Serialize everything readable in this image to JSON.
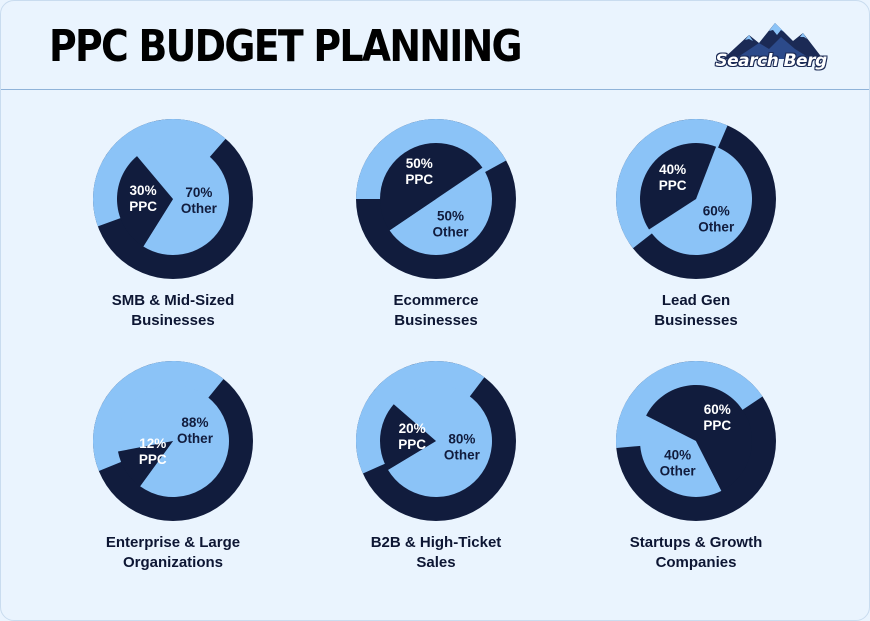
{
  "title": "PPC BUDGET PLANNING",
  "logo": {
    "text": "Search Berg"
  },
  "colors": {
    "dark": "#111c3d",
    "light": "#8bc3f7",
    "background": "#eaf4fe"
  },
  "chart_data": [
    {
      "type": "pie",
      "title_lines": [
        "SMB & Mid-Sized",
        "Businesses"
      ],
      "slices": [
        {
          "label_lines": [
            "30%",
            "PPC"
          ],
          "value": 30
        },
        {
          "label_lines": [
            "70%",
            "Other"
          ],
          "value": 70
        }
      ]
    },
    {
      "type": "pie",
      "title_lines": [
        "Ecommerce",
        "Businesses"
      ],
      "slices": [
        {
          "label_lines": [
            "50%",
            "PPC"
          ],
          "value": 50
        },
        {
          "label_lines": [
            "50%",
            "Other"
          ],
          "value": 50
        }
      ]
    },
    {
      "type": "pie",
      "title_lines": [
        "Lead Gen",
        "Businesses"
      ],
      "slices": [
        {
          "label_lines": [
            "40%",
            "PPC"
          ],
          "value": 40
        },
        {
          "label_lines": [
            "60%",
            "Other"
          ],
          "value": 60
        }
      ]
    },
    {
      "type": "pie",
      "title_lines": [
        "Enterprise & Large",
        "Organizations"
      ],
      "slices": [
        {
          "label_lines": [
            "12%",
            "PPC"
          ],
          "value": 12
        },
        {
          "label_lines": [
            "88%",
            "Other"
          ],
          "value": 88
        }
      ]
    },
    {
      "type": "pie",
      "title_lines": [
        "B2B & High-Ticket",
        "Sales"
      ],
      "slices": [
        {
          "label_lines": [
            "20%",
            "PPC"
          ],
          "value": 20
        },
        {
          "label_lines": [
            "80%",
            "Other"
          ],
          "value": 80
        }
      ]
    },
    {
      "type": "pie",
      "title_lines": [
        "Startups & Growth",
        "Companies"
      ],
      "slices": [
        {
          "label_lines": [
            "60%",
            "PPC"
          ],
          "value": 60
        },
        {
          "label_lines": [
            "40%",
            "Other"
          ],
          "value": 40
        }
      ]
    }
  ]
}
